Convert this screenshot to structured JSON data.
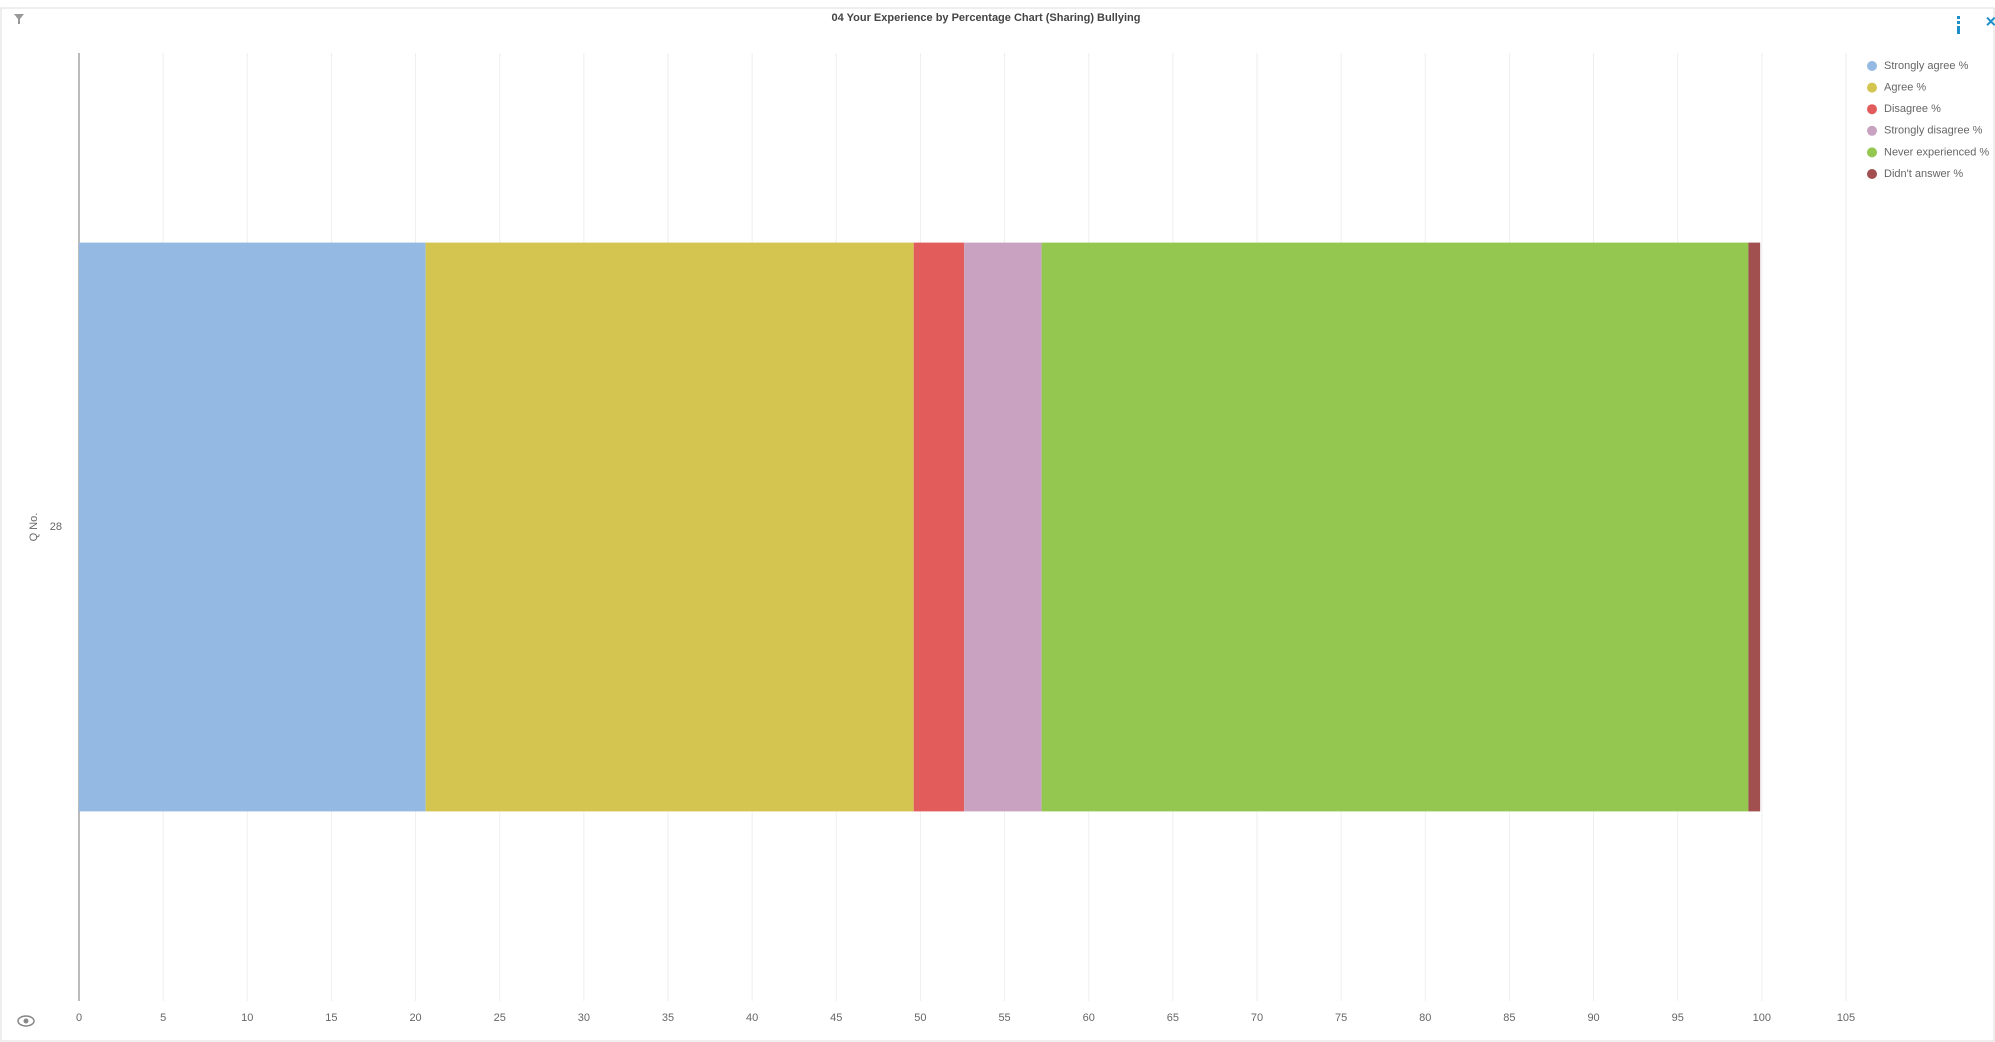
{
  "chart_data": {
    "type": "stacked-bar-horizontal",
    "title": "04 Your Experience by Percentage Chart (Sharing) Bullying",
    "ylabel": "Q No.",
    "categories": [
      "28"
    ],
    "series": [
      {
        "name": "Strongly agree %",
        "color": "#94b9e3",
        "values": [
          20.6
        ]
      },
      {
        "name": "Agree %",
        "color": "#d4c450",
        "values": [
          29.0
        ]
      },
      {
        "name": "Disagree %",
        "color": "#e25c5c",
        "values": [
          3.0
        ]
      },
      {
        "name": "Strongly disagree %",
        "color": "#c8a2c0",
        "values": [
          4.6
        ]
      },
      {
        "name": "Never experienced %",
        "color": "#93c750",
        "values": [
          42.0
        ]
      },
      {
        "name": "Didn't answer %",
        "color": "#a14f4f",
        "values": [
          0.7
        ]
      }
    ],
    "xlim": [
      0,
      105
    ],
    "xticks": [
      0,
      5,
      10,
      15,
      20,
      25,
      30,
      35,
      40,
      45,
      50,
      55,
      60,
      65,
      70,
      75,
      80,
      85,
      90,
      95,
      100,
      105
    ],
    "grid": true,
    "legend": "top-right"
  }
}
